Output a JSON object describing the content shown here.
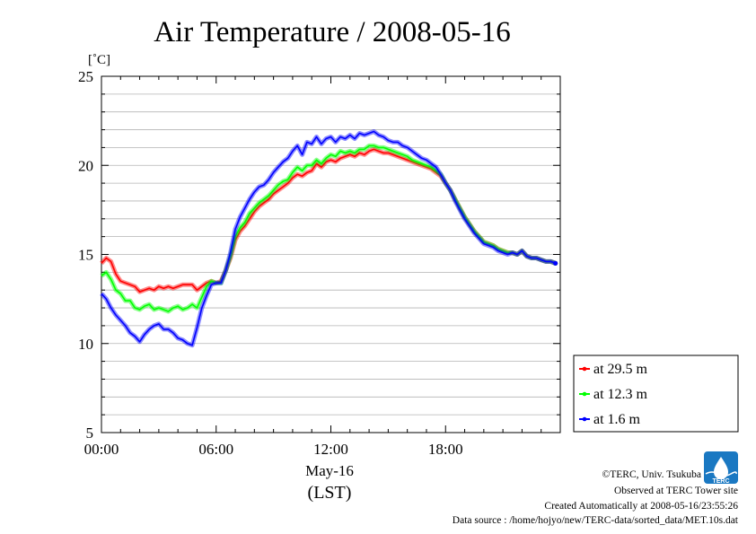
{
  "chart_data": {
    "type": "line",
    "title": "Air Temperature / 2008-05-16",
    "ylabel": "[˚C]",
    "xlabel_date": "May-16",
    "xlabel_tz": "(LST)",
    "xlim_hours": [
      0,
      24
    ],
    "ylim": [
      5,
      25
    ],
    "y_ticks": [
      5,
      10,
      15,
      20,
      25
    ],
    "x_ticks": [
      {
        "hour": 0,
        "label": "00:00"
      },
      {
        "hour": 6,
        "label": "06:00"
      },
      {
        "hour": 12,
        "label": "12:00"
      },
      {
        "hour": 18,
        "label": "18:00"
      }
    ],
    "grid": true,
    "legend_position": "right-bottom",
    "x": [
      0,
      0.25,
      0.5,
      0.75,
      1,
      1.25,
      1.5,
      1.75,
      2,
      2.25,
      2.5,
      2.75,
      3,
      3.25,
      3.5,
      3.75,
      4,
      4.25,
      4.5,
      4.75,
      5,
      5.25,
      5.5,
      5.75,
      6,
      6.25,
      6.5,
      6.75,
      7,
      7.25,
      7.5,
      7.75,
      8,
      8.25,
      8.5,
      8.75,
      9,
      9.25,
      9.5,
      9.75,
      10,
      10.25,
      10.5,
      10.75,
      11,
      11.25,
      11.5,
      11.75,
      12,
      12.25,
      12.5,
      12.75,
      13,
      13.25,
      13.5,
      13.75,
      14,
      14.25,
      14.5,
      14.75,
      15,
      15.25,
      15.5,
      15.75,
      16,
      16.25,
      16.5,
      16.75,
      17,
      17.25,
      17.5,
      17.75,
      18,
      18.25,
      18.5,
      18.75,
      19,
      19.25,
      19.5,
      19.75,
      20,
      20.25,
      20.5,
      20.75,
      21,
      21.25,
      21.5,
      21.75,
      22,
      22.25,
      22.5,
      22.75,
      23,
      23.25,
      23.5,
      23.75
    ],
    "series": [
      {
        "name": "at 29.5 m",
        "color": "#ff0000",
        "values": [
          14.5,
          14.8,
          14.6,
          13.9,
          13.5,
          13.4,
          13.3,
          13.2,
          12.9,
          13.0,
          13.1,
          13.0,
          13.2,
          13.1,
          13.2,
          13.1,
          13.2,
          13.3,
          13.3,
          13.3,
          13.0,
          13.2,
          13.4,
          13.5,
          13.4,
          13.5,
          14.1,
          14.8,
          15.8,
          16.3,
          16.6,
          17.0,
          17.4,
          17.7,
          17.9,
          18.1,
          18.4,
          18.6,
          18.8,
          19.0,
          19.3,
          19.5,
          19.4,
          19.6,
          19.7,
          20.1,
          19.9,
          20.2,
          20.3,
          20.2,
          20.4,
          20.5,
          20.6,
          20.5,
          20.7,
          20.6,
          20.8,
          20.9,
          20.8,
          20.7,
          20.7,
          20.6,
          20.5,
          20.4,
          20.3,
          20.2,
          20.1,
          20.0,
          19.9,
          19.8,
          19.6,
          19.4,
          19.0,
          18.6,
          18.1,
          17.6,
          17.1,
          16.7,
          16.3,
          16.0,
          15.7,
          15.6,
          15.5,
          15.3,
          15.2,
          15.1,
          15.1,
          15.0,
          15.2,
          14.9,
          14.8,
          14.8,
          14.7,
          14.6,
          14.6,
          14.5
        ]
      },
      {
        "name": "at 12.3 m",
        "color": "#00ff00",
        "values": [
          13.8,
          14.0,
          13.6,
          13.0,
          12.8,
          12.4,
          12.4,
          12.0,
          11.9,
          12.1,
          12.2,
          11.9,
          12.0,
          11.9,
          11.8,
          12.0,
          12.1,
          11.9,
          12.0,
          12.2,
          12.0,
          12.6,
          13.2,
          13.5,
          13.4,
          13.4,
          14.1,
          14.9,
          16.0,
          16.5,
          16.8,
          17.3,
          17.6,
          17.9,
          18.1,
          18.3,
          18.6,
          18.9,
          19.1,
          19.2,
          19.6,
          19.9,
          19.7,
          20.0,
          20.0,
          20.3,
          20.1,
          20.4,
          20.6,
          20.5,
          20.8,
          20.7,
          20.8,
          20.7,
          20.9,
          20.9,
          21.1,
          21.1,
          21.0,
          21.0,
          20.9,
          20.8,
          20.7,
          20.6,
          20.5,
          20.3,
          20.2,
          20.1,
          20.0,
          19.9,
          19.7,
          19.5,
          19.0,
          18.6,
          18.1,
          17.6,
          17.1,
          16.7,
          16.3,
          16.0,
          15.7,
          15.6,
          15.5,
          15.3,
          15.2,
          15.1,
          15.1,
          15.0,
          15.2,
          14.9,
          14.8,
          14.8,
          14.7,
          14.6,
          14.6,
          14.5
        ]
      },
      {
        "name": "at 1.6 m",
        "color": "#0000ff",
        "values": [
          12.8,
          12.5,
          12.0,
          11.6,
          11.3,
          11.0,
          10.6,
          10.4,
          10.1,
          10.5,
          10.8,
          11.0,
          11.1,
          10.8,
          10.8,
          10.6,
          10.3,
          10.2,
          10.0,
          9.9,
          10.9,
          12.0,
          12.7,
          13.3,
          13.4,
          13.4,
          14.1,
          15.1,
          16.4,
          17.1,
          17.6,
          18.1,
          18.5,
          18.8,
          18.9,
          19.2,
          19.6,
          19.9,
          20.2,
          20.4,
          20.8,
          21.1,
          20.6,
          21.3,
          21.2,
          21.6,
          21.2,
          21.5,
          21.6,
          21.3,
          21.6,
          21.5,
          21.7,
          21.5,
          21.8,
          21.7,
          21.8,
          21.9,
          21.7,
          21.6,
          21.4,
          21.3,
          21.3,
          21.1,
          21.0,
          20.8,
          20.6,
          20.4,
          20.3,
          20.1,
          19.9,
          19.5,
          19.0,
          18.6,
          18.0,
          17.5,
          17.0,
          16.6,
          16.2,
          15.9,
          15.6,
          15.5,
          15.4,
          15.2,
          15.1,
          15.0,
          15.1,
          15.0,
          15.2,
          14.9,
          14.8,
          14.8,
          14.7,
          14.6,
          14.6,
          14.5
        ]
      }
    ]
  },
  "footer": {
    "copyright": "©TERC, Univ. Tsukuba",
    "observed": "Observed at TERC Tower site",
    "created": "Created Automatically at 2008-05-16/23:55:26",
    "source": "Data source : /home/hojyo/new/TERC-data/sorted_data/MET.10s.dat"
  },
  "logo": {
    "text": "TERC",
    "color": "#1a78c2"
  }
}
